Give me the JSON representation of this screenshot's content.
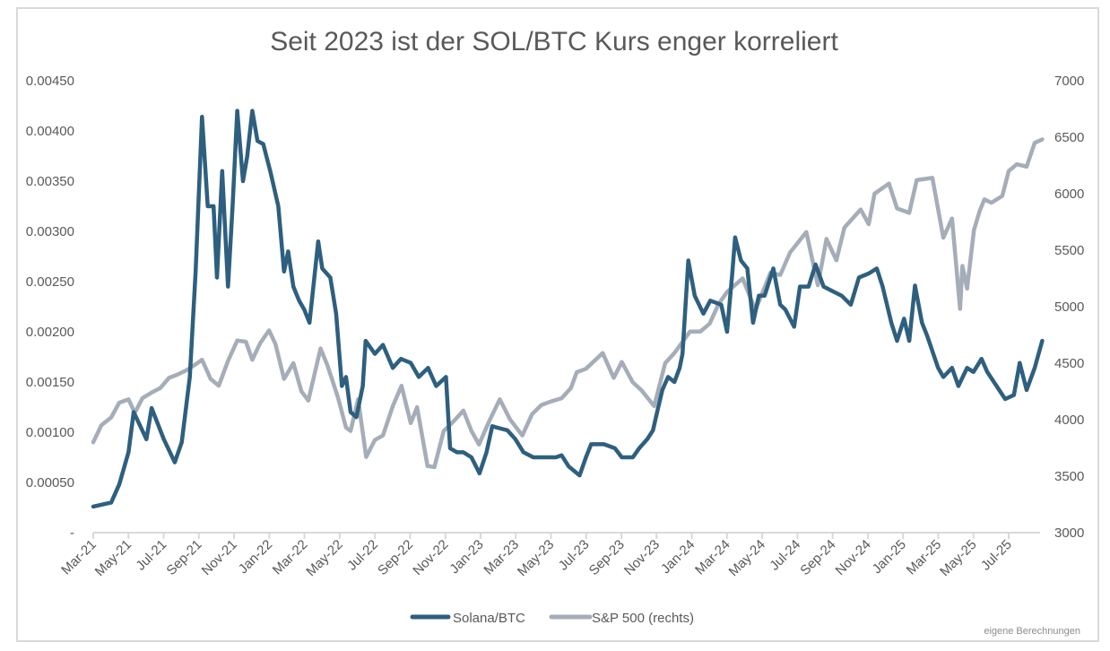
{
  "chart_data": {
    "type": "line",
    "title": "Seit 2023 ist der SOL/BTC Kurs enger korreliert",
    "note": "eigene Berechnungen",
    "legend_position": "bottom",
    "grid": false,
    "x_ticks": [
      "Mar-21",
      "May-21",
      "Jul-21",
      "Sep-21",
      "Nov-21",
      "Jan-22",
      "Mar-22",
      "May-22",
      "Jul-22",
      "Sep-22",
      "Nov-22",
      "Jan-23",
      "Mar-23",
      "May-23",
      "Jul-23",
      "Sep-23",
      "Nov-23",
      "Jan-24",
      "Mar-24",
      "May-24",
      "Jul-24",
      "Sep-24",
      "Nov-24",
      "Jan-25",
      "Mar-25",
      "May-25",
      "Jul-25"
    ],
    "y_left": {
      "range": [
        0,
        0.0045
      ],
      "ticks": [
        "-",
        "0.00050",
        "0.00100",
        "0.00150",
        "0.00200",
        "0.00250",
        "0.00300",
        "0.00350",
        "0.00400",
        "0.00450"
      ]
    },
    "y_right": {
      "range": [
        3000,
        7000
      ],
      "ticks": [
        "3000",
        "3500",
        "4000",
        "4500",
        "5000",
        "5500",
        "6000",
        "6500",
        "7000"
      ]
    },
    "series": [
      {
        "name": "Solana/BTC",
        "axis": "left",
        "color": "#2e5f7f",
        "points": [
          [
            "2021-03-01",
            0.00026
          ],
          [
            "2021-04-01",
            0.0003
          ],
          [
            "2021-04-15",
            0.00048
          ],
          [
            "2021-05-01",
            0.0008
          ],
          [
            "2021-05-10",
            0.0012
          ],
          [
            "2021-06-01",
            0.00093
          ],
          [
            "2021-06-10",
            0.00124
          ],
          [
            "2021-07-01",
            0.00093
          ],
          [
            "2021-07-20",
            0.0007
          ],
          [
            "2021-08-01",
            0.0009
          ],
          [
            "2021-08-15",
            0.00155
          ],
          [
            "2021-08-25",
            0.0026
          ],
          [
            "2021-09-05",
            0.00414
          ],
          [
            "2021-09-15",
            0.00325
          ],
          [
            "2021-09-25",
            0.00325
          ],
          [
            "2021-10-01",
            0.00254
          ],
          [
            "2021-10-10",
            0.0036
          ],
          [
            "2021-10-20",
            0.00245
          ],
          [
            "2021-10-28",
            0.00325
          ],
          [
            "2021-11-05",
            0.0042
          ],
          [
            "2021-11-15",
            0.0035
          ],
          [
            "2021-11-22",
            0.00374
          ],
          [
            "2021-12-01",
            0.0042
          ],
          [
            "2021-12-10",
            0.0039
          ],
          [
            "2021-12-20",
            0.00387
          ],
          [
            "2022-01-01",
            0.0036
          ],
          [
            "2022-01-15",
            0.00325
          ],
          [
            "2022-01-25",
            0.0026
          ],
          [
            "2022-02-01",
            0.0028
          ],
          [
            "2022-02-10",
            0.00245
          ],
          [
            "2022-02-20",
            0.00231
          ],
          [
            "2022-03-01",
            0.00222
          ],
          [
            "2022-03-10",
            0.00209
          ],
          [
            "2022-03-25",
            0.0029
          ],
          [
            "2022-04-01",
            0.00263
          ],
          [
            "2022-04-15",
            0.00254
          ],
          [
            "2022-04-25",
            0.00218
          ],
          [
            "2022-05-05",
            0.00146
          ],
          [
            "2022-05-12",
            0.00155
          ],
          [
            "2022-05-20",
            0.0012
          ],
          [
            "2022-05-30",
            0.00115
          ],
          [
            "2022-06-10",
            0.00146
          ],
          [
            "2022-06-15",
            0.00191
          ],
          [
            "2022-07-01",
            0.00178
          ],
          [
            "2022-07-15",
            0.00187
          ],
          [
            "2022-08-01",
            0.00164
          ],
          [
            "2022-08-15",
            0.00173
          ],
          [
            "2022-09-01",
            0.00169
          ],
          [
            "2022-09-15",
            0.00155
          ],
          [
            "2022-10-01",
            0.00164
          ],
          [
            "2022-10-15",
            0.00146
          ],
          [
            "2022-11-01",
            0.00155
          ],
          [
            "2022-11-08",
            0.00084
          ],
          [
            "2022-11-20",
            0.0008
          ],
          [
            "2022-12-01",
            0.0008
          ],
          [
            "2022-12-15",
            0.00075
          ],
          [
            "2022-12-29",
            0.00059
          ],
          [
            "2023-01-10",
            0.0008
          ],
          [
            "2023-01-20",
            0.00106
          ],
          [
            "2023-02-01",
            0.00104
          ],
          [
            "2023-02-15",
            0.00102
          ],
          [
            "2023-03-01",
            0.00093
          ],
          [
            "2023-03-15",
            0.0008
          ],
          [
            "2023-04-01",
            0.00075
          ],
          [
            "2023-04-20",
            0.00075
          ],
          [
            "2023-05-10",
            0.00075
          ],
          [
            "2023-05-20",
            0.00077
          ],
          [
            "2023-06-01",
            0.00066
          ],
          [
            "2023-06-20",
            0.00057
          ],
          [
            "2023-07-01",
            0.00075
          ],
          [
            "2023-07-10",
            0.00088
          ],
          [
            "2023-08-01",
            0.00088
          ],
          [
            "2023-08-20",
            0.00084
          ],
          [
            "2023-09-01",
            0.00075
          ],
          [
            "2023-09-20",
            0.00075
          ],
          [
            "2023-10-01",
            0.00084
          ],
          [
            "2023-10-15",
            0.00093
          ],
          [
            "2023-10-25",
            0.00102
          ],
          [
            "2023-11-01",
            0.0012
          ],
          [
            "2023-11-10",
            0.00142
          ],
          [
            "2023-11-20",
            0.00155
          ],
          [
            "2023-12-01",
            0.0015
          ],
          [
            "2023-12-10",
            0.00164
          ],
          [
            "2023-12-15",
            0.00178
          ],
          [
            "2023-12-25",
            0.00271
          ],
          [
            "2024-01-05",
            0.00236
          ],
          [
            "2024-01-20",
            0.00218
          ],
          [
            "2024-02-01",
            0.00231
          ],
          [
            "2024-02-20",
            0.00227
          ],
          [
            "2024-03-01",
            0.002
          ],
          [
            "2024-03-10",
            0.00258
          ],
          [
            "2024-03-15",
            0.00294
          ],
          [
            "2024-03-25",
            0.00271
          ],
          [
            "2024-04-05",
            0.00263
          ],
          [
            "2024-04-15",
            0.00209
          ],
          [
            "2024-04-25",
            0.00236
          ],
          [
            "2024-05-05",
            0.00236
          ],
          [
            "2024-05-20",
            0.00263
          ],
          [
            "2024-06-01",
            0.00227
          ],
          [
            "2024-06-10",
            0.00222
          ],
          [
            "2024-06-25",
            0.00205
          ],
          [
            "2024-07-05",
            0.00245
          ],
          [
            "2024-07-20",
            0.00245
          ],
          [
            "2024-08-01",
            0.00267
          ],
          [
            "2024-08-15",
            0.00245
          ],
          [
            "2024-09-01",
            0.0024
          ],
          [
            "2024-09-15",
            0.00236
          ],
          [
            "2024-10-01",
            0.00227
          ],
          [
            "2024-10-15",
            0.00254
          ],
          [
            "2024-11-01",
            0.00258
          ],
          [
            "2024-11-15",
            0.00263
          ],
          [
            "2024-11-25",
            0.00245
          ],
          [
            "2024-12-10",
            0.00209
          ],
          [
            "2024-12-20",
            0.00191
          ],
          [
            "2025-01-01",
            0.00213
          ],
          [
            "2025-01-10",
            0.00191
          ],
          [
            "2025-01-20",
            0.00246
          ],
          [
            "2025-02-01",
            0.00209
          ],
          [
            "2025-02-10",
            0.00196
          ],
          [
            "2025-03-01",
            0.00164
          ],
          [
            "2025-03-10",
            0.00155
          ],
          [
            "2025-03-25",
            0.00164
          ],
          [
            "2025-04-05",
            0.00146
          ],
          [
            "2025-04-20",
            0.00164
          ],
          [
            "2025-05-01",
            0.0016
          ],
          [
            "2025-05-15",
            0.00173
          ],
          [
            "2025-05-25",
            0.0016
          ],
          [
            "2025-06-10",
            0.00146
          ],
          [
            "2025-06-25",
            0.00133
          ],
          [
            "2025-07-10",
            0.00137
          ],
          [
            "2025-07-20",
            0.00169
          ],
          [
            "2025-08-01",
            0.00142
          ],
          [
            "2025-08-15",
            0.00164
          ],
          [
            "2025-08-28",
            0.00191
          ]
        ]
      },
      {
        "name": "S&P 500 (rechts)",
        "axis": "right",
        "color": "#a5adb8",
        "points": [
          [
            "2021-03-01",
            3800
          ],
          [
            "2021-03-15",
            3950
          ],
          [
            "2021-04-01",
            4020
          ],
          [
            "2021-04-15",
            4150
          ],
          [
            "2021-05-01",
            4180
          ],
          [
            "2021-05-12",
            4060
          ],
          [
            "2021-05-25",
            4190
          ],
          [
            "2021-06-10",
            4240
          ],
          [
            "2021-06-25",
            4280
          ],
          [
            "2021-07-10",
            4370
          ],
          [
            "2021-07-25",
            4400
          ],
          [
            "2021-08-10",
            4440
          ],
          [
            "2021-08-25",
            4490
          ],
          [
            "2021-09-05",
            4530
          ],
          [
            "2021-09-20",
            4360
          ],
          [
            "2021-10-04",
            4300
          ],
          [
            "2021-10-20",
            4520
          ],
          [
            "2021-11-05",
            4700
          ],
          [
            "2021-11-20",
            4690
          ],
          [
            "2021-12-01",
            4530
          ],
          [
            "2021-12-15",
            4680
          ],
          [
            "2021-12-30",
            4790
          ],
          [
            "2022-01-10",
            4670
          ],
          [
            "2022-01-25",
            4360
          ],
          [
            "2022-02-10",
            4500
          ],
          [
            "2022-02-24",
            4250
          ],
          [
            "2022-03-08",
            4170
          ],
          [
            "2022-03-29",
            4630
          ],
          [
            "2022-04-10",
            4480
          ],
          [
            "2022-04-28",
            4200
          ],
          [
            "2022-05-12",
            3930
          ],
          [
            "2022-05-20",
            3900
          ],
          [
            "2022-06-02",
            4180
          ],
          [
            "2022-06-16",
            3670
          ],
          [
            "2022-07-01",
            3820
          ],
          [
            "2022-07-15",
            3860
          ],
          [
            "2022-08-01",
            4120
          ],
          [
            "2022-08-16",
            4300
          ],
          [
            "2022-09-01",
            3970
          ],
          [
            "2022-09-12",
            4110
          ],
          [
            "2022-09-30",
            3590
          ],
          [
            "2022-10-12",
            3580
          ],
          [
            "2022-10-28",
            3900
          ],
          [
            "2022-11-15",
            3990
          ],
          [
            "2022-12-01",
            4080
          ],
          [
            "2022-12-15",
            3900
          ],
          [
            "2022-12-28",
            3780
          ],
          [
            "2023-01-15",
            3990
          ],
          [
            "2023-02-02",
            4180
          ],
          [
            "2023-02-20",
            4000
          ],
          [
            "2023-03-13",
            3860
          ],
          [
            "2023-03-30",
            4050
          ],
          [
            "2023-04-15",
            4130
          ],
          [
            "2023-05-01",
            4160
          ],
          [
            "2023-05-20",
            4190
          ],
          [
            "2023-06-05",
            4280
          ],
          [
            "2023-06-15",
            4420
          ],
          [
            "2023-07-01",
            4450
          ],
          [
            "2023-07-30",
            4590
          ],
          [
            "2023-08-18",
            4370
          ],
          [
            "2023-09-01",
            4510
          ],
          [
            "2023-09-20",
            4330
          ],
          [
            "2023-10-05",
            4260
          ],
          [
            "2023-10-27",
            4120
          ],
          [
            "2023-11-15",
            4500
          ],
          [
            "2023-12-01",
            4590
          ],
          [
            "2023-12-28",
            4780
          ],
          [
            "2024-01-15",
            4780
          ],
          [
            "2024-01-31",
            4850
          ],
          [
            "2024-02-15",
            5020
          ],
          [
            "2024-03-01",
            5130
          ],
          [
            "2024-03-28",
            5250
          ],
          [
            "2024-04-19",
            4970
          ],
          [
            "2024-05-15",
            5300
          ],
          [
            "2024-06-01",
            5280
          ],
          [
            "2024-06-18",
            5480
          ],
          [
            "2024-07-16",
            5660
          ],
          [
            "2024-08-05",
            5190
          ],
          [
            "2024-08-20",
            5600
          ],
          [
            "2024-09-06",
            5410
          ],
          [
            "2024-09-20",
            5700
          ],
          [
            "2024-10-18",
            5860
          ],
          [
            "2024-11-01",
            5730
          ],
          [
            "2024-11-11",
            6000
          ],
          [
            "2024-12-06",
            6090
          ],
          [
            "2024-12-20",
            5870
          ],
          [
            "2025-01-10",
            5830
          ],
          [
            "2025-01-23",
            6120
          ],
          [
            "2025-02-19",
            6140
          ],
          [
            "2025-03-10",
            5610
          ],
          [
            "2025-03-25",
            5780
          ],
          [
            "2025-04-08",
            4980
          ],
          [
            "2025-04-12",
            5360
          ],
          [
            "2025-04-20",
            5160
          ],
          [
            "2025-05-02",
            5680
          ],
          [
            "2025-05-12",
            5850
          ],
          [
            "2025-05-20",
            5950
          ],
          [
            "2025-06-01",
            5920
          ],
          [
            "2025-06-20",
            5980
          ],
          [
            "2025-07-01",
            6200
          ],
          [
            "2025-07-15",
            6260
          ],
          [
            "2025-08-01",
            6240
          ],
          [
            "2025-08-15",
            6450
          ],
          [
            "2025-08-28",
            6480
          ]
        ]
      }
    ]
  }
}
